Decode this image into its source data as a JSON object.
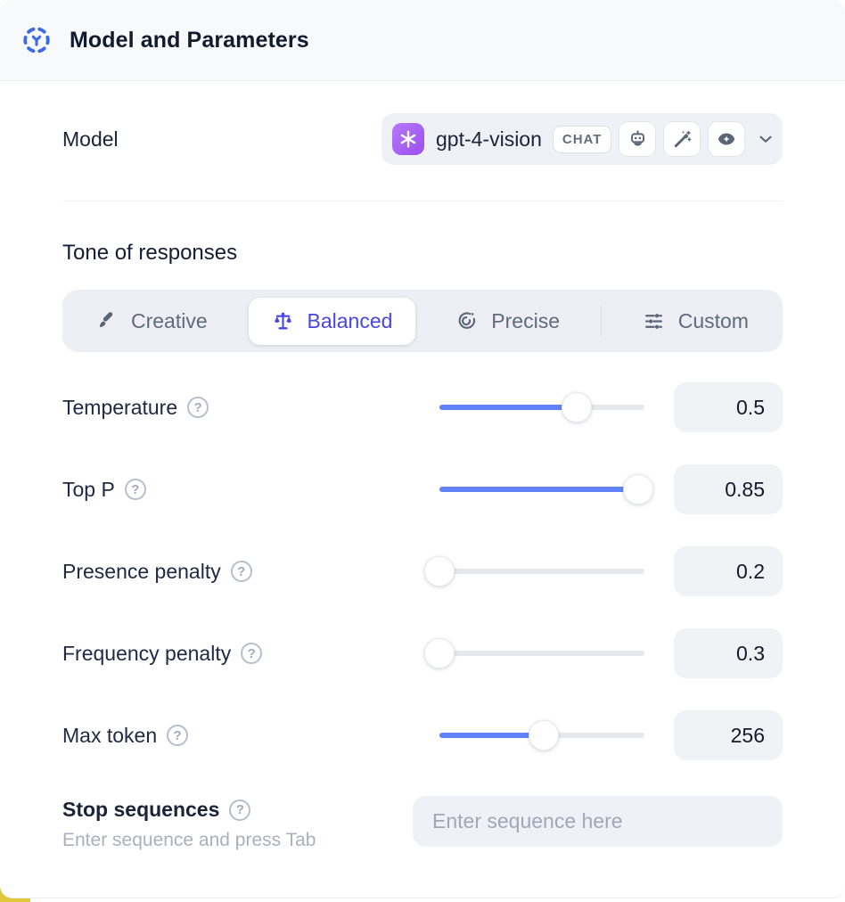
{
  "header": {
    "title": "Model and Parameters"
  },
  "model": {
    "label": "Model",
    "selected_model": "gpt-4-vision",
    "type_badge": "CHAT",
    "capabilities": [
      "bot",
      "wand",
      "vision"
    ]
  },
  "tone": {
    "heading": "Tone of responses",
    "options": [
      {
        "label": "Creative",
        "icon": "brush-icon",
        "selected": false
      },
      {
        "label": "Balanced",
        "icon": "scales-icon",
        "selected": true
      },
      {
        "label": "Precise",
        "icon": "target-icon",
        "selected": false
      },
      {
        "label": "Custom",
        "icon": "sliders-icon",
        "selected": false
      }
    ]
  },
  "parameters": [
    {
      "label": "Temperature",
      "value": "0.5",
      "slider_pct": 67
    },
    {
      "label": "Top P",
      "value": "0.85",
      "slider_pct": 97
    },
    {
      "label": "Presence penalty",
      "value": "0.2",
      "slider_pct": 0
    },
    {
      "label": "Frequency penalty",
      "value": "0.3",
      "slider_pct": 0
    },
    {
      "label": "Max token",
      "value": "256",
      "slider_pct": 51
    }
  ],
  "stop_sequences": {
    "label": "Stop sequences",
    "hint": "Enter sequence and press Tab",
    "placeholder": "Enter sequence here"
  },
  "icons": {
    "help_glyph": "?"
  },
  "colors": {
    "accent_blue": "#3D6BE5",
    "slider_fill": "#6282FA",
    "selected_tone_text": "#4845E3",
    "openai_purple": "#A45CF5",
    "bottom_accent_yellow": "#E2C63B",
    "header_bg": "#F8F9FB",
    "field_bg": "#F1F2F6"
  }
}
